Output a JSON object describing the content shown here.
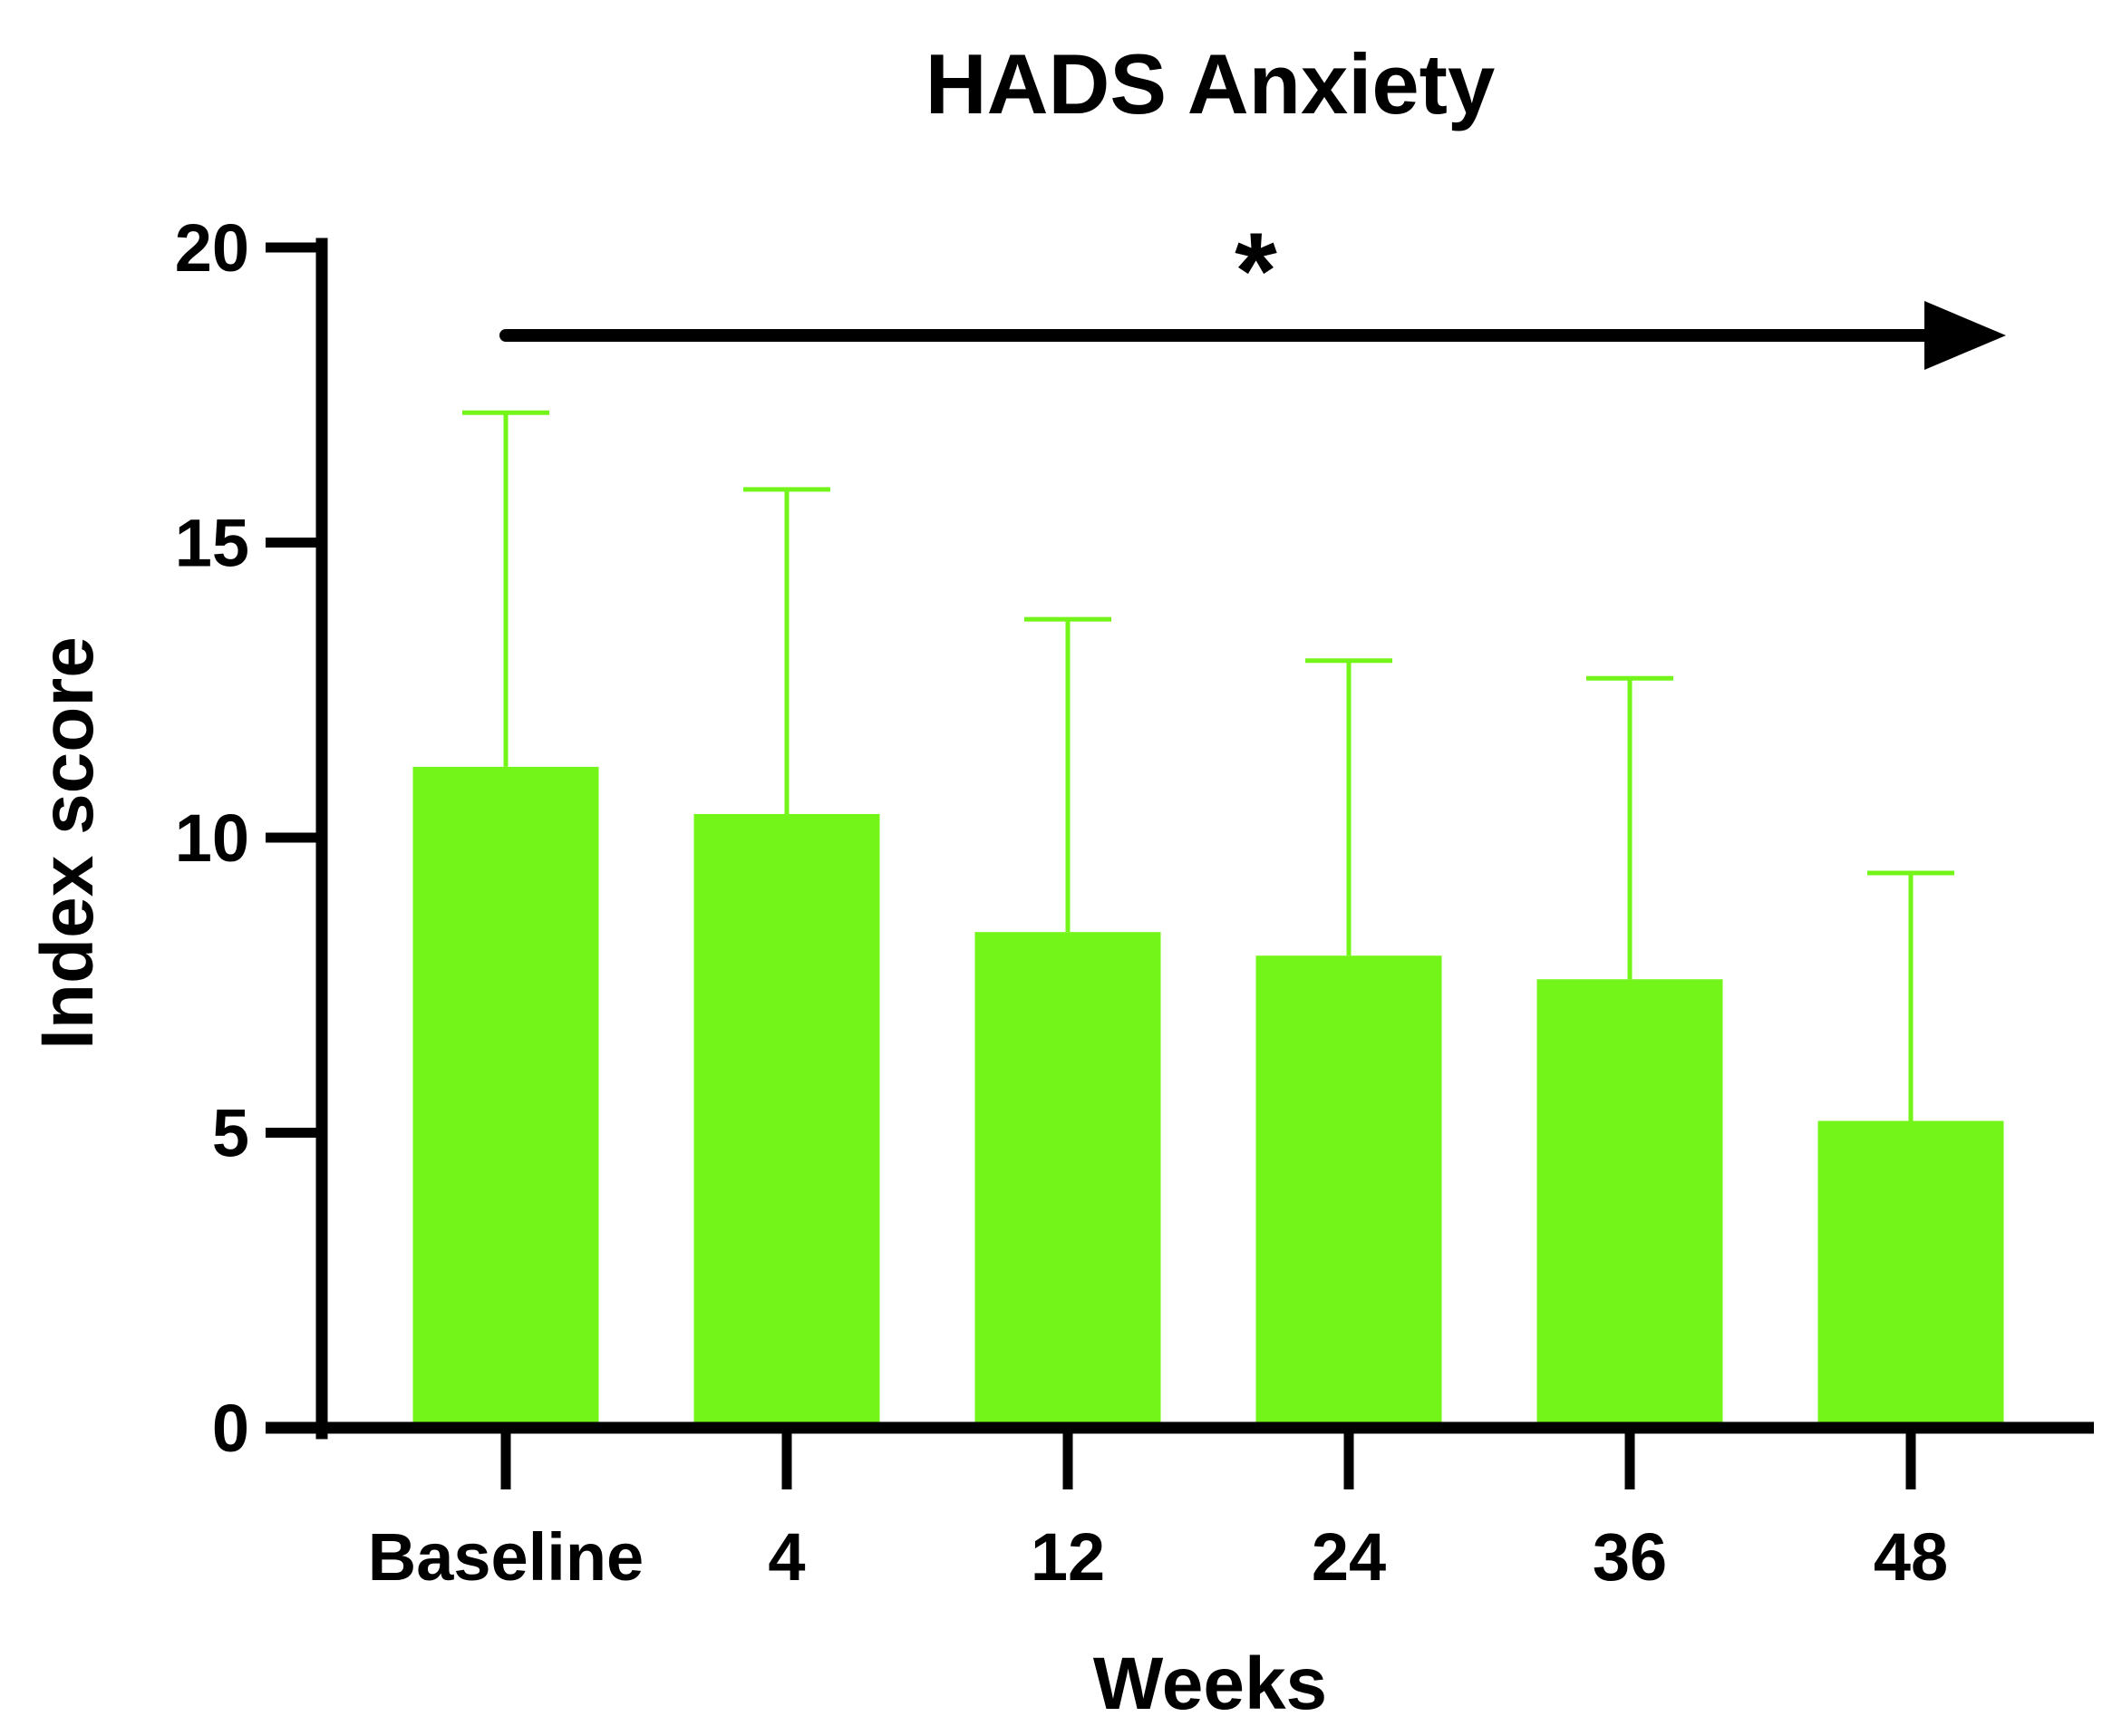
{
  "chart_data": {
    "type": "bar",
    "title": "HADS Anxiety",
    "xlabel": "Weeks",
    "ylabel": "Index score",
    "categories": [
      "Baseline",
      "4",
      "12",
      "24",
      "36",
      "48"
    ],
    "values": [
      11.2,
      10.4,
      8.4,
      8.0,
      7.6,
      5.2
    ],
    "error_upper": [
      17.2,
      15.9,
      13.7,
      13.0,
      12.7,
      9.4
    ],
    "ylim": [
      0,
      20
    ],
    "yticks": [
      0,
      5,
      10,
      15,
      20
    ],
    "grid": false,
    "annotation": {
      "text": "*",
      "arrow_from": "Baseline",
      "arrow_to": "48"
    },
    "colors": {
      "bar": "#74f51a",
      "axis": "#000000"
    }
  }
}
